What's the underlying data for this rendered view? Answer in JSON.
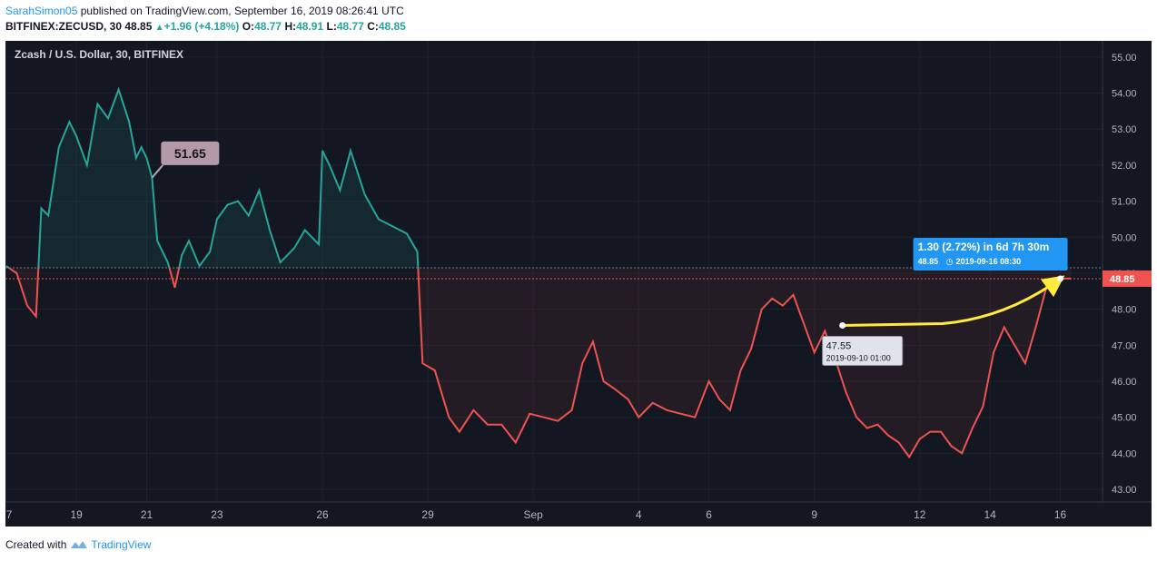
{
  "header": {
    "user": "SarahSimon05",
    "published": " published on TradingView.com, September 16, 2019 08:26:41 UTC",
    "symbol": "BITFINEX:ZECUSD, 30",
    "price": "48.85",
    "change": "+1.96 (+4.18%)",
    "o_label": "O:",
    "o_value": "48.77",
    "h_label": "H:",
    "h_value": "48.91",
    "l_label": "L:",
    "l_value": "48.77",
    "c_label": "C:",
    "c_value": "48.85",
    "up_glyph": "▲"
  },
  "footer": {
    "created_with": "Created with",
    "brand": "TradingView"
  },
  "colors": {
    "bull": "#26a69a",
    "bear": "#ef5350",
    "background": "#131722",
    "grid": "#1e222d",
    "arrow": "#ffeb3b",
    "callout_blue": "#2196f3"
  },
  "chart_data": {
    "type": "line",
    "title": "Zcash / U.S. Dollar, 30, BITFINEX",
    "baseline": 49.15,
    "ylim": [
      42.65,
      55.45
    ],
    "yticks": [
      "55.00",
      "54.00",
      "53.00",
      "52.00",
      "51.00",
      "50.00",
      "49.00",
      "48.00",
      "47.00",
      "46.00",
      "45.00",
      "44.00",
      "43.00"
    ],
    "xticks": [
      {
        "label": "7",
        "day": 17
      },
      {
        "label": "19",
        "day": 19
      },
      {
        "label": "21",
        "day": 21
      },
      {
        "label": "23",
        "day": 23
      },
      {
        "label": "26",
        "day": 26
      },
      {
        "label": "29",
        "day": 29
      },
      {
        "label": "Sep",
        "day": 32
      },
      {
        "label": "4",
        "day": 35
      },
      {
        "label": "6",
        "day": 37
      },
      {
        "label": "9",
        "day": 40
      },
      {
        "label": "12",
        "day": 43
      },
      {
        "label": "14",
        "day": 45
      },
      {
        "label": "16",
        "day": 47
      }
    ],
    "series": [
      {
        "x": [
          17,
          17.3,
          17.6,
          17.85,
          18.0,
          18.2,
          18.5,
          18.8,
          19.0,
          19.3,
          19.6,
          19.9,
          20.2,
          20.5,
          20.7,
          20.85,
          21.0,
          21.15,
          21.3,
          21.6,
          21.8,
          22.0,
          22.2,
          22.5,
          22.8,
          23.0,
          23.3,
          23.6,
          23.9,
          24.2,
          24.5,
          24.8,
          25.2,
          25.5,
          25.9,
          26.0,
          26.2,
          26.5,
          26.8,
          27.2,
          27.6,
          28.0,
          28.4,
          28.7,
          28.85,
          29.2,
          29.6,
          29.9,
          30.3,
          30.7,
          31.1,
          31.5,
          31.9,
          32.3,
          32.7,
          33.1,
          33.4,
          33.7,
          34.0,
          34.3,
          34.7,
          35.0,
          35.4,
          35.8,
          36.2,
          36.6,
          37.0,
          37.3,
          37.6,
          37.9,
          38.2,
          38.5,
          38.8,
          39.1,
          39.4,
          39.7,
          40.0,
          40.3,
          40.6,
          40.9,
          41.2,
          41.5,
          41.8,
          42.1,
          42.4,
          42.7,
          43.0,
          43.3,
          43.6,
          43.9,
          44.2,
          44.5,
          44.8,
          45.1,
          45.4,
          45.7,
          46.0,
          46.3,
          46.6,
          46.9,
          47.1,
          47.3
        ],
        "values": [
          49.2,
          49.0,
          48.1,
          47.8,
          50.8,
          50.6,
          52.5,
          53.2,
          52.8,
          52.0,
          53.7,
          53.3,
          54.1,
          53.2,
          52.2,
          52.5,
          52.2,
          51.65,
          49.9,
          49.3,
          48.6,
          49.5,
          49.9,
          49.2,
          49.6,
          50.5,
          50.9,
          51.0,
          50.6,
          51.3,
          50.2,
          49.3,
          49.7,
          50.2,
          49.8,
          52.4,
          52.0,
          51.3,
          52.4,
          51.2,
          50.5,
          50.3,
          50.1,
          49.6,
          46.5,
          46.3,
          45.0,
          44.6,
          45.2,
          44.8,
          44.8,
          44.3,
          45.1,
          45.0,
          44.9,
          45.2,
          46.5,
          47.1,
          46.0,
          45.8,
          45.5,
          45.0,
          45.4,
          45.2,
          45.1,
          45.0,
          46.0,
          45.5,
          45.2,
          46.3,
          46.9,
          48.0,
          48.3,
          48.1,
          48.4,
          47.6,
          46.8,
          47.4,
          46.6,
          45.7,
          45.0,
          44.7,
          44.8,
          44.5,
          44.3,
          43.9,
          44.4,
          44.6,
          44.6,
          44.2,
          44.0,
          44.7,
          45.3,
          46.8,
          47.5,
          47.0,
          46.5,
          47.5,
          48.6,
          48.85,
          48.85,
          48.85
        ]
      }
    ],
    "current_price": "48.85",
    "label_51": "51.65",
    "measure": {
      "from_day": 40.8,
      "from_value": 47.55,
      "to_day": 47.0,
      "to_value": 48.85,
      "from_price": "47.55",
      "from_time": "2019-09-10 01:00",
      "result": "1.30 (2.72%) in 6d 7h 30m",
      "to_price": "48.85",
      "to_time": "2019-09-16  08:30",
      "clock_glyph": "◷"
    }
  }
}
